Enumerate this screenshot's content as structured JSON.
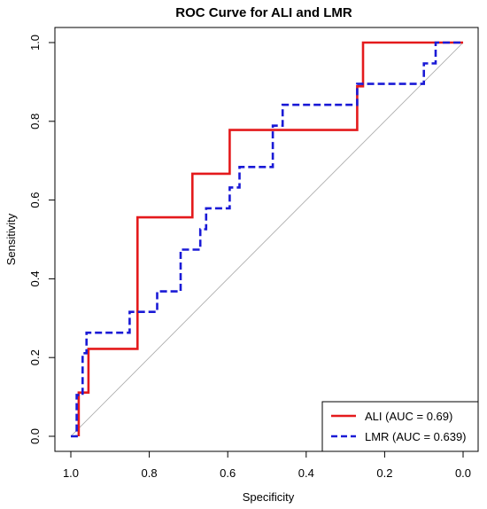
{
  "chart_data": {
    "type": "line",
    "title": "ROC Curve for ALI and LMR",
    "xlabel": "Specificity",
    "ylabel": "Sensitivity",
    "xlim": [
      1.0,
      0.0
    ],
    "ylim": [
      0.0,
      1.0
    ],
    "x_reversed": true,
    "xticks": [
      "1.0",
      "0.8",
      "0.6",
      "0.4",
      "0.2",
      "0.0"
    ],
    "yticks": [
      "0.0",
      "0.2",
      "0.4",
      "0.6",
      "0.8",
      "1.0"
    ],
    "grid": false,
    "legend_position": "bottom-right",
    "diagonal_reference": true,
    "series": [
      {
        "name": "ALI (AUC = 0.69)",
        "color": "#e41a1c",
        "style": "solid",
        "points": [
          [
            0.98,
            0.0
          ],
          [
            0.98,
            0.111
          ],
          [
            0.955,
            0.111
          ],
          [
            0.955,
            0.222
          ],
          [
            0.83,
            0.222
          ],
          [
            0.83,
            0.556
          ],
          [
            0.69,
            0.556
          ],
          [
            0.69,
            0.667
          ],
          [
            0.595,
            0.667
          ],
          [
            0.595,
            0.778
          ],
          [
            0.27,
            0.778
          ],
          [
            0.27,
            0.889
          ],
          [
            0.255,
            0.889
          ],
          [
            0.255,
            1.0
          ],
          [
            0.0,
            1.0
          ]
        ]
      },
      {
        "name": "LMR (AUC = 0.639)",
        "color": "#1a1ad6",
        "style": "dashed",
        "points": [
          [
            1.0,
            0.0
          ],
          [
            0.985,
            0.0
          ],
          [
            0.985,
            0.105
          ],
          [
            0.97,
            0.105
          ],
          [
            0.97,
            0.211
          ],
          [
            0.96,
            0.211
          ],
          [
            0.96,
            0.263
          ],
          [
            0.85,
            0.263
          ],
          [
            0.85,
            0.316
          ],
          [
            0.78,
            0.316
          ],
          [
            0.78,
            0.368
          ],
          [
            0.72,
            0.368
          ],
          [
            0.72,
            0.474
          ],
          [
            0.67,
            0.474
          ],
          [
            0.67,
            0.526
          ],
          [
            0.655,
            0.526
          ],
          [
            0.655,
            0.579
          ],
          [
            0.595,
            0.579
          ],
          [
            0.595,
            0.632
          ],
          [
            0.57,
            0.632
          ],
          [
            0.57,
            0.684
          ],
          [
            0.485,
            0.684
          ],
          [
            0.485,
            0.789
          ],
          [
            0.46,
            0.789
          ],
          [
            0.46,
            0.842
          ],
          [
            0.27,
            0.842
          ],
          [
            0.27,
            0.895
          ],
          [
            0.1,
            0.895
          ],
          [
            0.1,
            0.947
          ],
          [
            0.07,
            0.947
          ],
          [
            0.07,
            1.0
          ],
          [
            0.0,
            1.0
          ]
        ]
      }
    ]
  }
}
